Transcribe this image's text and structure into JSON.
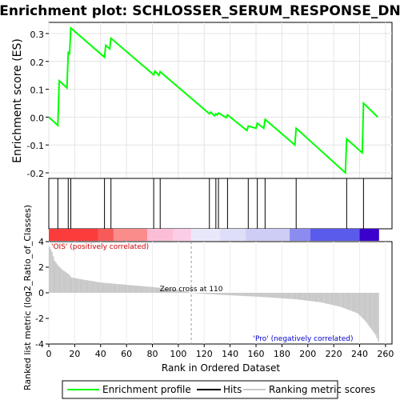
{
  "chart_data": [
    {
      "type": "line",
      "title": "Enrichment plot: SCHLOSSER_SERUM_RESPONSE_DN",
      "ylabel": "Enrichment score (ES)",
      "ylim": [
        -0.22,
        0.34
      ],
      "yticks": [
        "0.3",
        "0.2",
        "0.1",
        "0.0",
        "-0.1",
        "-0.2"
      ],
      "ytick_values": [
        0.3,
        0.2,
        0.1,
        0.0,
        -0.1,
        -0.2
      ],
      "grid": true,
      "series": [
        {
          "name": "Enrichment profile",
          "color": "#00ff00",
          "x": [
            0,
            7,
            8,
            14,
            15,
            16,
            17,
            43,
            44,
            47,
            48,
            81,
            82,
            85,
            86,
            124,
            125,
            128,
            129,
            130,
            131,
            137,
            138,
            153,
            154,
            160,
            161,
            166,
            167,
            190,
            191,
            229,
            230,
            242,
            243,
            254
          ],
          "y": [
            0.0,
            -0.03,
            0.13,
            0.105,
            0.235,
            0.225,
            0.32,
            0.215,
            0.258,
            0.245,
            0.283,
            0.152,
            0.165,
            0.15,
            0.163,
            0.012,
            0.018,
            0.005,
            0.012,
            0.008,
            0.015,
            -0.002,
            0.008,
            -0.048,
            -0.032,
            -0.04,
            -0.022,
            -0.04,
            -0.008,
            -0.1,
            -0.04,
            -0.2,
            -0.078,
            -0.128,
            0.05,
            0.0
          ]
        }
      ]
    },
    {
      "type": "hits",
      "name": "Hits",
      "positions": [
        7,
        15,
        17,
        43,
        48,
        81,
        86,
        124,
        129,
        131,
        138,
        154,
        161,
        167,
        191,
        230,
        243
      ]
    },
    {
      "type": "bar",
      "name": "Ranking metric scores",
      "ylabel": "Ranked list metric (log2_Ratio_of_Classes)",
      "xlabel": "Rank in Ordered Dataset",
      "xlim": [
        0,
        265
      ],
      "ylim": [
        -4,
        4
      ],
      "xticks": [
        "0",
        "20",
        "40",
        "60",
        "80",
        "100",
        "120",
        "140",
        "160",
        "180",
        "200",
        "220",
        "240",
        "260"
      ],
      "xtick_values": [
        0,
        20,
        40,
        60,
        80,
        100,
        120,
        140,
        160,
        180,
        200,
        220,
        240,
        260
      ],
      "yticks": [
        "4",
        "2",
        "0",
        "-2",
        "-4"
      ],
      "ytick_values": [
        4,
        2,
        0,
        -2,
        -4
      ],
      "total": 255,
      "zero_cross": 110,
      "zero_cross_label": "Zero cross at 110",
      "positive_label": "'OIS' (positively correlated)",
      "negative_label": "'Pro' (negatively correlated)",
      "positive_color": "#cc0000",
      "negative_color": "#0000cc",
      "metric_keypoints": [
        [
          0,
          3.6
        ],
        [
          2,
          3.2
        ],
        [
          4,
          2.5
        ],
        [
          7,
          2.1
        ],
        [
          10,
          1.8
        ],
        [
          15,
          1.45
        ],
        [
          17,
          1.2
        ],
        [
          25,
          1.05
        ],
        [
          40,
          0.8
        ],
        [
          60,
          0.62
        ],
        [
          80,
          0.45
        ],
        [
          100,
          0.22
        ],
        [
          110,
          0.0
        ],
        [
          111,
          -0.03
        ],
        [
          130,
          -0.15
        ],
        [
          160,
          -0.3
        ],
        [
          190,
          -0.5
        ],
        [
          210,
          -0.75
        ],
        [
          225,
          -1.1
        ],
        [
          238,
          -1.6
        ],
        [
          244,
          -2.2
        ],
        [
          249,
          -2.9
        ],
        [
          252,
          -3.3
        ],
        [
          254,
          -3.8
        ]
      ]
    }
  ],
  "legend": {
    "items": [
      {
        "label": "Enrichment profile",
        "color": "#00ff00"
      },
      {
        "label": "Hits",
        "color": "#000000"
      },
      {
        "label": "Ranking metric scores",
        "color": "#c8c8c8"
      }
    ]
  }
}
